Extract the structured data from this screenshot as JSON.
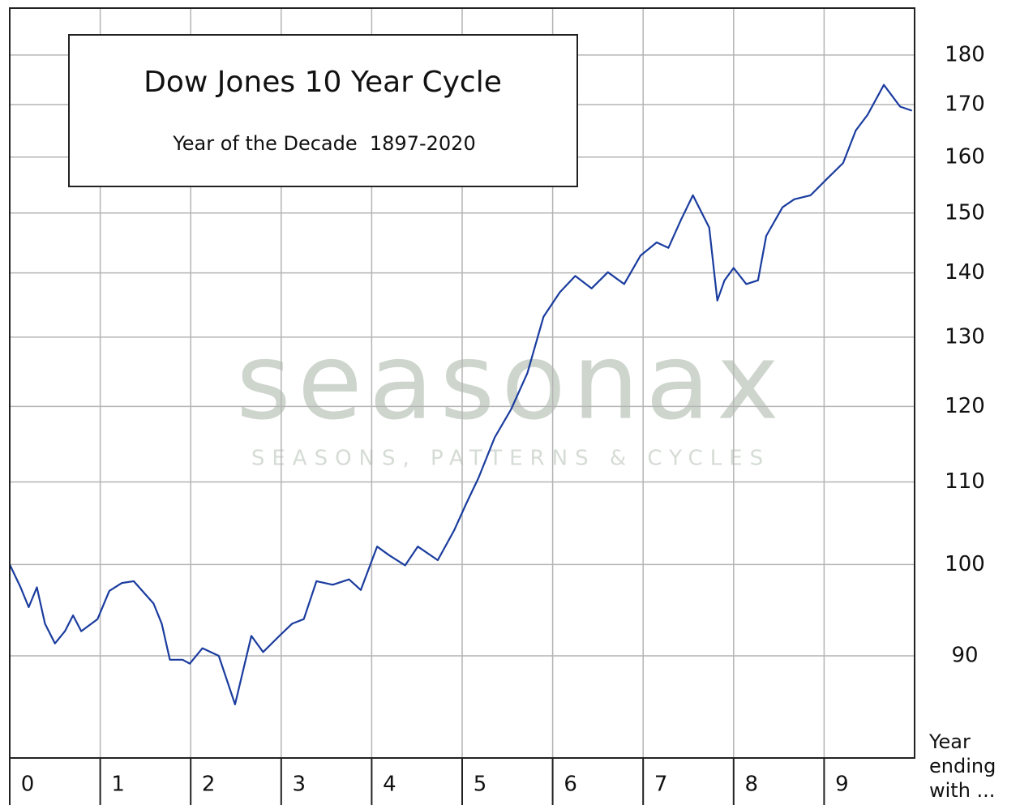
{
  "chart_data": {
    "type": "line",
    "title": "Dow Jones 10 Year Cycle",
    "subtitle": "Year of the Decade  1897-2020",
    "xlabel": "Year ending with ...",
    "watermark": "seasonax",
    "watermark_tagline": "SEASONS, PATTERNS & CYCLES",
    "log_scale_y": true,
    "grid": true,
    "xlim": [
      0,
      10
    ],
    "xticks": [
      0,
      1,
      2,
      3,
      4,
      5,
      6,
      7,
      8,
      9
    ],
    "ylim": [
      80,
      190
    ],
    "yticks": [
      90,
      100,
      110,
      120,
      130,
      140,
      150,
      160,
      170,
      180
    ],
    "series": [
      {
        "name": "Dow Jones",
        "color": "#1a3c9e",
        "x": [
          0,
          0.12,
          0.21,
          0.3,
          0.39,
          0.5,
          0.61,
          0.7,
          0.79,
          0.97,
          1.1,
          1.24,
          1.37,
          1.59,
          1.68,
          1.77,
          1.91,
          1.99,
          2.13,
          2.31,
          2.49,
          2.67,
          2.8,
          2.98,
          3.12,
          3.25,
          3.39,
          3.57,
          3.75,
          3.88,
          4.06,
          4.19,
          4.37,
          4.51,
          4.73,
          4.91,
          5.05,
          5.18,
          5.36,
          5.54,
          5.72,
          5.9,
          6.08,
          6.25,
          6.43,
          6.61,
          6.79,
          6.97,
          7.15,
          7.28,
          7.42,
          7.55,
          7.73,
          7.82,
          7.9,
          8.0,
          8.14,
          8.27,
          8.36,
          8.54,
          8.67,
          8.85,
          9.03,
          9.21,
          9.35,
          9.48,
          9.66,
          9.84,
          9.97
        ],
        "values": [
          100.0,
          97.4,
          95.2,
          97.4,
          93.4,
          91.3,
          92.6,
          94.3,
          92.6,
          93.9,
          97.0,
          97.9,
          98.1,
          95.6,
          93.4,
          89.6,
          89.6,
          89.2,
          90.8,
          90.0,
          85.1,
          92.1,
          90.4,
          92.1,
          93.4,
          93.9,
          98.1,
          97.7,
          98.3,
          97.1,
          102.1,
          101.1,
          99.9,
          102.1,
          100.5,
          104.0,
          107.4,
          110.5,
          115.8,
          119.6,
          124.7,
          133.1,
          136.9,
          139.5,
          137.5,
          140.1,
          138.2,
          142.8,
          145.0,
          144.1,
          148.9,
          153.1,
          147.5,
          135.6,
          138.8,
          140.8,
          138.2,
          138.8,
          146.1,
          151.0,
          152.4,
          153.1,
          156.0,
          158.9,
          165.0,
          168.0,
          173.9,
          169.6,
          168.8
        ]
      }
    ]
  }
}
